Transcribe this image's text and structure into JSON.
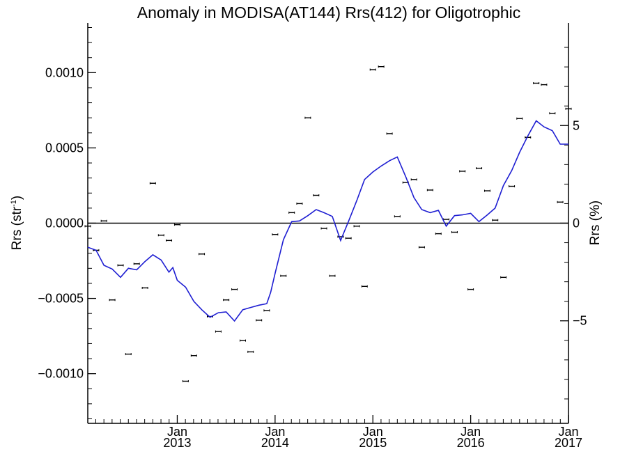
{
  "chart_data": {
    "type": "line",
    "title": "Anomaly in MODISA(AT144) Rrs(412) for Oligotrophic",
    "ylabel_left_base": "Rrs (str",
    "ylabel_left_sup": "-1",
    "ylabel_left_end": ")",
    "ylabel_right": "Rrs (%)",
    "xlim": [
      2012.085,
      2017.0
    ],
    "ylim": [
      -0.00133,
      0.00133
    ],
    "ylim_right_percent": [
      -10.25,
      10.25
    ],
    "grid": false,
    "x_ticks": [
      {
        "x": 2013.0,
        "month": "Jan",
        "year": "2013"
      },
      {
        "x": 2014.0,
        "month": "Jan",
        "year": "2014"
      },
      {
        "x": 2015.0,
        "month": "Jan",
        "year": "2015"
      },
      {
        "x": 2016.0,
        "month": "Jan",
        "year": "2016"
      },
      {
        "x": 2017.0,
        "month": "Jan",
        "year": "2017"
      }
    ],
    "y_ticks_left": [
      {
        "v": 0.001,
        "label": "0.0010"
      },
      {
        "v": 0.0005,
        "label": "0.0005"
      },
      {
        "v": 0.0,
        "label": "0.0000"
      },
      {
        "v": -0.0005,
        "label": "−0.0005"
      },
      {
        "v": -0.001,
        "label": "−0.0010"
      }
    ],
    "y_ticks_right": [
      {
        "v": 5,
        "label": "5"
      },
      {
        "v": 0,
        "label": "0"
      },
      {
        "v": -5,
        "label": "−5"
      }
    ],
    "baseline": 0,
    "series": [
      {
        "kind": "points",
        "color": "#000000",
        "x": [
          2012.085,
          2012.17,
          2012.25,
          2012.335,
          2012.42,
          2012.5,
          2012.585,
          2012.67,
          2012.75,
          2012.835,
          2012.915,
          2013.0,
          2013.085,
          2013.17,
          2013.25,
          2013.335,
          2013.42,
          2013.5,
          2013.585,
          2013.67,
          2013.75,
          2013.835,
          2013.915,
          2014.0,
          2014.085,
          2014.17,
          2014.25,
          2014.335,
          2014.42,
          2014.5,
          2014.585,
          2014.67,
          2014.75,
          2014.835,
          2014.915,
          2015.0,
          2015.085,
          2015.17,
          2015.25,
          2015.335,
          2015.42,
          2015.5,
          2015.585,
          2015.67,
          2015.75,
          2015.835,
          2015.915,
          2016.0,
          2016.085,
          2016.17,
          2016.25,
          2016.335,
          2016.42,
          2016.5,
          2016.585,
          2016.67,
          2016.75,
          2016.835,
          2016.915,
          2017.0
        ],
        "y": [
          -2e-05,
          -0.00018,
          1.5e-05,
          -0.00051,
          -0.00028,
          -0.00087,
          -0.00027,
          -0.00043,
          0.000265,
          -8e-05,
          -0.000115,
          -1e-05,
          -0.00105,
          -0.00088,
          -0.000205,
          -0.00062,
          -0.00072,
          -0.00051,
          -0.00044,
          -0.00078,
          -0.000855,
          -0.000645,
          -0.00058,
          -7.5e-05,
          -0.00035,
          7e-05,
          0.00013,
          0.0007,
          0.000185,
          -3.5e-05,
          -0.00035,
          -9e-05,
          -0.0001,
          -2e-05,
          -0.00042,
          0.00102,
          0.00104,
          0.000595,
          4.5e-05,
          0.00027,
          0.00029,
          -0.00016,
          0.00022,
          -7e-05,
          2.5e-05,
          -6e-05,
          0.000345,
          -0.00044,
          0.000365,
          0.000215,
          2e-05,
          -0.00036,
          0.000245,
          0.000695,
          0.00057,
          0.00093,
          0.00092,
          0.00073,
          0.00014,
          0.00076
        ]
      },
      {
        "kind": "line",
        "color": "#1e1ed2",
        "x": [
          2012.085,
          2012.17,
          2012.25,
          2012.335,
          2012.42,
          2012.5,
          2012.585,
          2012.67,
          2012.75,
          2012.835,
          2012.915,
          2012.955,
          2013.0,
          2013.085,
          2013.17,
          2013.25,
          2013.335,
          2013.42,
          2013.5,
          2013.585,
          2013.67,
          2013.75,
          2013.835,
          2013.915,
          2013.955,
          2014.0,
          2014.085,
          2014.17,
          2014.25,
          2014.335,
          2014.42,
          2014.5,
          2014.585,
          2014.67,
          2014.75,
          2014.835,
          2014.915,
          2015.0,
          2015.085,
          2015.17,
          2015.25,
          2015.335,
          2015.42,
          2015.5,
          2015.585,
          2015.67,
          2015.75,
          2015.835,
          2015.915,
          2016.0,
          2016.085,
          2016.17,
          2016.25,
          2016.335,
          2016.42,
          2016.5,
          2016.585,
          2016.67,
          2016.75,
          2016.835,
          2016.915,
          2017.0
        ],
        "y": [
          -0.00016,
          -0.00018,
          -0.00028,
          -0.000305,
          -0.00036,
          -0.0003,
          -0.00031,
          -0.000255,
          -0.00021,
          -0.000245,
          -0.000325,
          -0.000295,
          -0.00038,
          -0.000425,
          -0.00052,
          -0.000575,
          -0.000625,
          -0.000595,
          -0.00059,
          -0.00065,
          -0.000575,
          -0.00056,
          -0.000545,
          -0.000535,
          -0.00046,
          -0.000335,
          -0.00011,
          1e-05,
          1.5e-05,
          5e-05,
          9e-05,
          7e-05,
          4.5e-05,
          -0.000115,
          1e-05,
          0.00015,
          0.00029,
          0.00034,
          0.00038,
          0.000415,
          0.00044,
          0.00031,
          0.00017,
          9e-05,
          7e-05,
          8.5e-05,
          -2e-05,
          5e-05,
          5.5e-05,
          6.5e-05,
          1e-05,
          5.5e-05,
          0.0001,
          0.00025,
          0.00035,
          0.00047,
          0.00058,
          0.00068,
          0.00064,
          0.000615,
          0.000525,
          0.000525
        ]
      }
    ]
  }
}
